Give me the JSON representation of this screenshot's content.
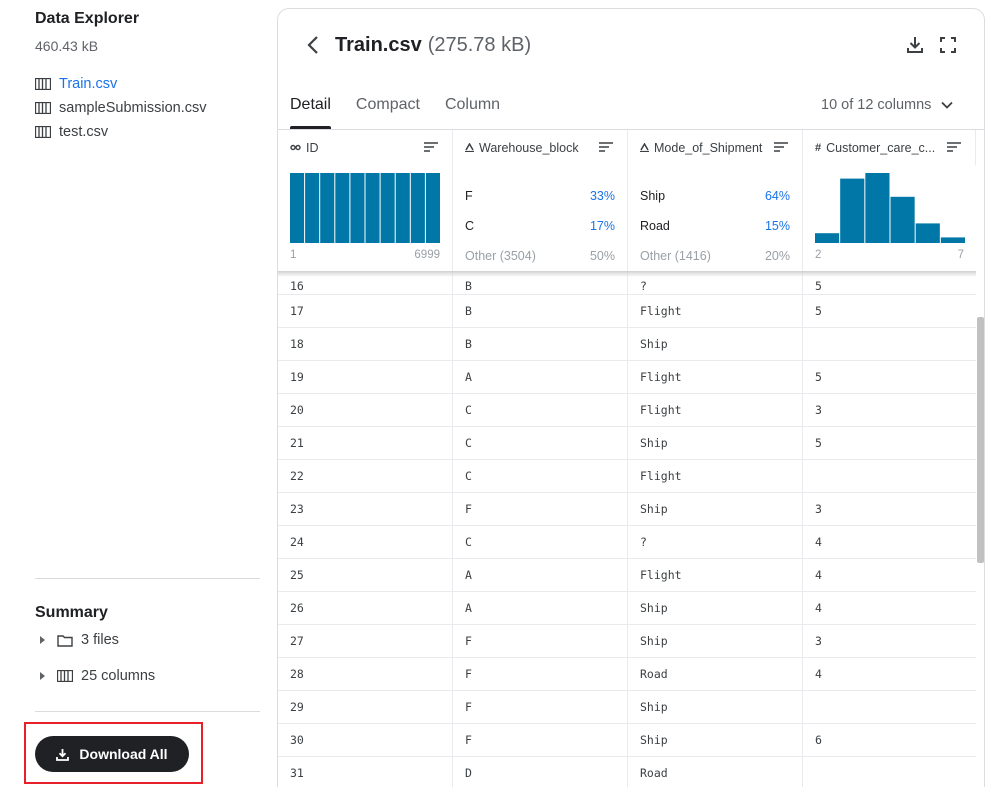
{
  "sidebar": {
    "title": "Data Explorer",
    "size": "460.43 kB",
    "files": [
      {
        "name": "Train.csv",
        "active": true
      },
      {
        "name": "sampleSubmission.csv",
        "active": false
      },
      {
        "name": "test.csv",
        "active": false
      }
    ],
    "summary": {
      "title": "Summary",
      "files_label": "3 files",
      "columns_label": "25 columns"
    },
    "download_all_label": "Download All"
  },
  "file": {
    "name": "Train.csv",
    "size": "(275.78 kB)"
  },
  "tabs": [
    "Detail",
    "Compact",
    "Column"
  ],
  "active_tab": "Detail",
  "columns_selector": "10 of 12 columns",
  "columns": [
    {
      "name": "ID",
      "type_icon": "key-icon"
    },
    {
      "name": "Warehouse_block",
      "type_icon": "string-icon"
    },
    {
      "name": "Mode_of_Shipment",
      "type_icon": "string-icon"
    },
    {
      "name": "Customer_care_c...",
      "type_icon": "numeric-icon"
    }
  ],
  "column_stats": {
    "id": {
      "min": "1",
      "max": "6999",
      "hist": [
        1,
        1,
        1,
        1,
        1,
        1,
        1,
        1,
        1,
        1
      ]
    },
    "warehouse_block": [
      {
        "label": "F",
        "pct": "33%"
      },
      {
        "label": "C",
        "pct": "17%"
      },
      {
        "label": "Other (3504)",
        "pct": "50%"
      }
    ],
    "mode_of_shipment": [
      {
        "label": "Ship",
        "pct": "64%"
      },
      {
        "label": "Road",
        "pct": "15%"
      },
      {
        "label": "Other (1416)",
        "pct": "20%"
      }
    ],
    "customer_care": {
      "min": "2",
      "max": "7",
      "hist": [
        0.14,
        0.92,
        1.0,
        0.66,
        0.28,
        0.08
      ]
    }
  },
  "rows": [
    [
      "16",
      "B",
      "?",
      "5"
    ],
    [
      "17",
      "B",
      "Flight",
      "5"
    ],
    [
      "18",
      "B",
      "Ship",
      ""
    ],
    [
      "19",
      "A",
      "Flight",
      "5"
    ],
    [
      "20",
      "C",
      "Flight",
      "3"
    ],
    [
      "21",
      "C",
      "Ship",
      "5"
    ],
    [
      "22",
      "C",
      "Flight",
      ""
    ],
    [
      "23",
      "F",
      "Ship",
      "3"
    ],
    [
      "24",
      "C",
      "?",
      "4"
    ],
    [
      "25",
      "A",
      "Flight",
      "4"
    ],
    [
      "26",
      "A",
      "Ship",
      "4"
    ],
    [
      "27",
      "F",
      "Ship",
      "3"
    ],
    [
      "28",
      "F",
      "Road",
      "4"
    ],
    [
      "29",
      "F",
      "Ship",
      ""
    ],
    [
      "30",
      "F",
      "Ship",
      "6"
    ],
    [
      "31",
      "D",
      "Road",
      ""
    ]
  ],
  "colors": {
    "accent": "#1a73e8",
    "bar": "#0077a6",
    "button_bg": "#202124",
    "highlight": "#e8202a"
  }
}
